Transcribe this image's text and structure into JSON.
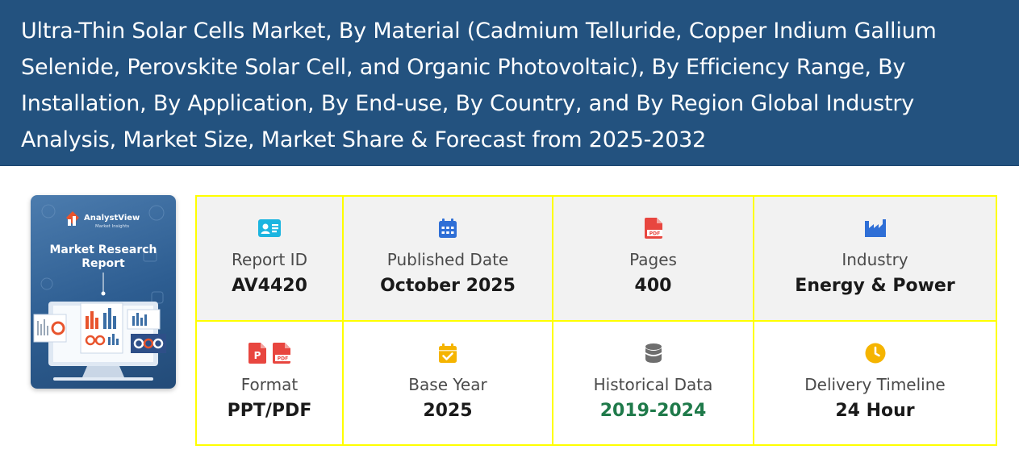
{
  "header": {
    "title": "Ultra-Thin Solar Cells Market, By Material (Cadmium Telluride, Copper Indium Gallium Selenide, Perovskite Solar Cell, and Organic Photovoltaic), By Efficiency Range, By Installation, By Application, By End-use, By Country, and By Region Global Industry Analysis, Market Size, Market Share & Forecast from 2025-2032"
  },
  "cover": {
    "brand": "AnalystView",
    "brand_sub": "Market Insights",
    "heading_line1": "Market Research",
    "heading_line2": "Report"
  },
  "details": {
    "report_id": {
      "label": "Report ID",
      "value": "AV4420",
      "icon": "id-card-icon"
    },
    "published_date": {
      "label": "Published Date",
      "value": "October 2025",
      "icon": "calendar-icon"
    },
    "pages": {
      "label": "Pages",
      "value": "400",
      "icon": "pdf-file-icon"
    },
    "industry": {
      "label": "Industry",
      "value": "Energy & Power",
      "icon": "industry-icon"
    },
    "format": {
      "label": "Format",
      "value": "PPT/PDF",
      "icon": "ppt-pdf-icons"
    },
    "base_year": {
      "label": "Base Year",
      "value": "2025",
      "icon": "calendar-check-icon"
    },
    "historical_data": {
      "label": "Historical Data",
      "value": "2019-2024",
      "icon": "database-icon"
    },
    "delivery_timeline": {
      "label": "Delivery Timeline",
      "value": "24 Hour",
      "icon": "clock-icon"
    }
  },
  "colors": {
    "banner": "#23527f",
    "grid_border": "#ffff00",
    "historical_value": "#1f7a4a"
  }
}
